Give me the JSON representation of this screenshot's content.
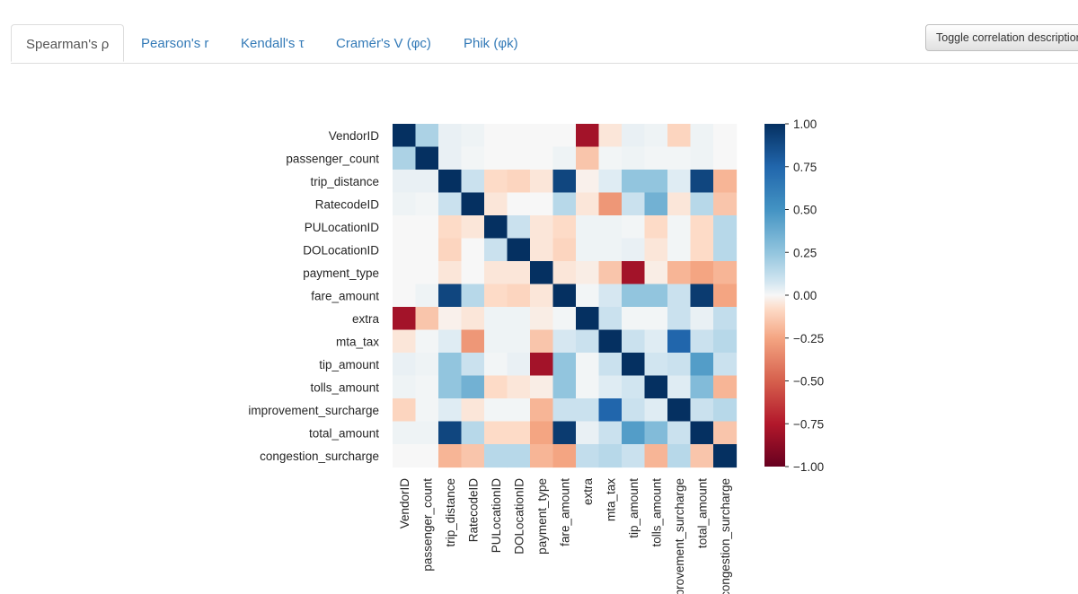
{
  "tabs": [
    {
      "label": "Spearman's ρ",
      "active": true
    },
    {
      "label": "Pearson's r",
      "active": false
    },
    {
      "label": "Kendall's τ",
      "active": false
    },
    {
      "label": "Cramér's V (φc)",
      "active": false
    },
    {
      "label": "Phik (φk)",
      "active": false
    }
  ],
  "toggle_button": {
    "label": "Toggle correlation descriptions"
  },
  "chart_data": {
    "type": "heatmap",
    "title": "",
    "colormap": "RdBu",
    "vmin": -1.0,
    "vmax": 1.0,
    "colorbar_ticks": [
      1.0,
      0.75,
      0.5,
      0.25,
      0.0,
      -0.25,
      -0.5,
      -0.75,
      -1.0
    ],
    "colorbar_tick_labels": [
      "1.00",
      "0.75",
      "0.50",
      "0.25",
      "0.00",
      "−0.25",
      "−0.50",
      "−0.75",
      "−1.00"
    ],
    "row_labels": [
      "VendorID",
      "passenger_count",
      "trip_distance",
      "RatecodeID",
      "PULocationID",
      "DOLocationID",
      "payment_type",
      "fare_amount",
      "extra",
      "mta_tax",
      "tip_amount",
      "tolls_amount",
      "improvement_surcharge",
      "total_amount",
      "congestion_surcharge"
    ],
    "col_labels": [
      "VendorID",
      "passenger_count",
      "trip_distance",
      "RatecodeID",
      "PULocationID",
      "DOLocationID",
      "payment_type",
      "fare_amount",
      "extra",
      "mta_tax",
      "tip_amount",
      "tolls_amount",
      "improvement_surcharge",
      "total_amount",
      "congestion_surcharge"
    ],
    "matrix": [
      [
        1.0,
        0.18,
        0.03,
        0.02,
        0.0,
        0.0,
        0.0,
        0.0,
        -0.8,
        -0.05,
        0.03,
        0.02,
        -0.1,
        0.02,
        0.0
      ],
      [
        0.18,
        1.0,
        0.03,
        0.01,
        0.0,
        0.0,
        0.0,
        0.02,
        -0.15,
        0.01,
        0.02,
        0.01,
        0.01,
        0.02,
        0.0
      ],
      [
        0.03,
        0.03,
        1.0,
        0.1,
        -0.08,
        -0.1,
        -0.05,
        0.9,
        -0.02,
        0.05,
        0.25,
        0.25,
        0.05,
        0.9,
        -0.2
      ],
      [
        0.02,
        0.01,
        0.1,
        1.0,
        -0.05,
        0.0,
        0.0,
        0.15,
        -0.05,
        -0.3,
        0.1,
        0.35,
        -0.05,
        0.15,
        -0.15
      ],
      [
        0.0,
        0.0,
        -0.08,
        -0.05,
        1.0,
        0.1,
        -0.05,
        -0.08,
        0.02,
        0.02,
        0.01,
        -0.08,
        0.01,
        -0.08,
        0.15
      ],
      [
        0.0,
        0.0,
        -0.1,
        0.0,
        0.1,
        1.0,
        -0.05,
        -0.1,
        0.02,
        0.02,
        0.03,
        -0.05,
        0.01,
        -0.08,
        0.15
      ],
      [
        0.0,
        0.0,
        -0.05,
        0.0,
        -0.05,
        -0.05,
        1.0,
        -0.05,
        -0.03,
        -0.15,
        -0.8,
        -0.03,
        -0.2,
        -0.25,
        -0.2
      ],
      [
        0.0,
        0.02,
        0.9,
        0.15,
        -0.08,
        -0.1,
        -0.05,
        1.0,
        0.01,
        0.07,
        0.25,
        0.25,
        0.1,
        0.95,
        -0.25
      ],
      [
        -0.8,
        -0.15,
        -0.02,
        -0.05,
        0.02,
        0.02,
        -0.03,
        0.01,
        1.0,
        0.1,
        0.01,
        0.01,
        0.1,
        0.03,
        0.12
      ],
      [
        -0.05,
        0.01,
        0.05,
        -0.3,
        0.02,
        0.02,
        -0.15,
        0.07,
        0.1,
        1.0,
        0.1,
        0.05,
        0.75,
        0.1,
        0.15
      ],
      [
        0.03,
        0.02,
        0.25,
        0.1,
        0.01,
        0.03,
        -0.8,
        0.25,
        0.01,
        0.1,
        1.0,
        0.08,
        0.1,
        0.45,
        0.1
      ],
      [
        0.02,
        0.01,
        0.25,
        0.35,
        -0.08,
        -0.05,
        -0.03,
        0.25,
        0.01,
        0.05,
        0.08,
        1.0,
        0.05,
        0.3,
        -0.2
      ],
      [
        -0.1,
        0.01,
        0.05,
        -0.05,
        0.01,
        0.01,
        -0.2,
        0.1,
        0.1,
        0.75,
        0.1,
        0.05,
        1.0,
        0.1,
        0.15
      ],
      [
        0.02,
        0.02,
        0.9,
        0.15,
        -0.08,
        -0.08,
        -0.25,
        0.95,
        0.03,
        0.1,
        0.45,
        0.3,
        0.1,
        1.0,
        -0.15
      ],
      [
        0.0,
        0.0,
        -0.2,
        -0.15,
        0.15,
        0.15,
        -0.2,
        -0.25,
        0.12,
        0.15,
        0.1,
        -0.2,
        0.15,
        -0.15,
        1.0
      ]
    ]
  }
}
